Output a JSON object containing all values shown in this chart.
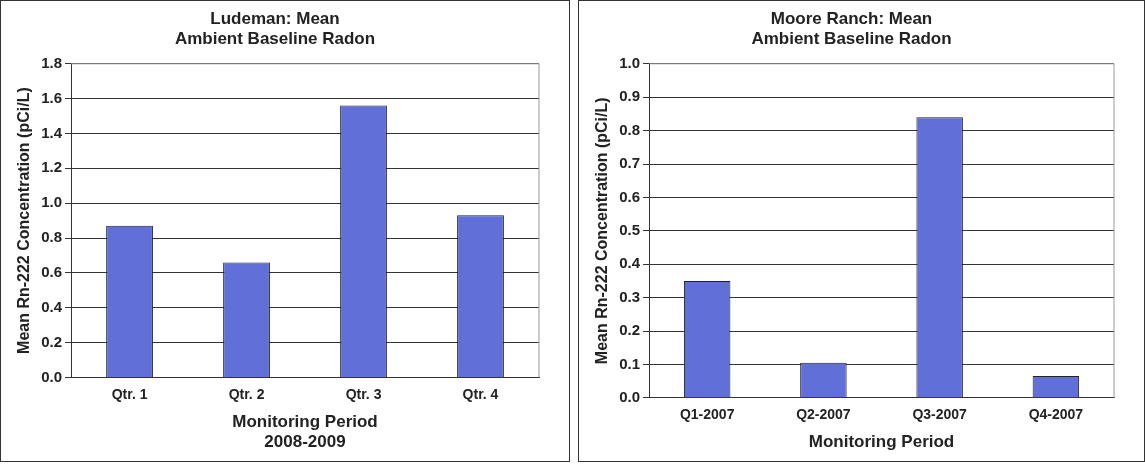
{
  "chart_data": [
    {
      "type": "bar",
      "title": "Ludeman: Mean\nAmbient Baseline Radon",
      "categories": [
        "Qtr. 1",
        "Qtr. 2",
        "Qtr. 3",
        "Qtr. 4"
      ],
      "values": [
        0.87,
        0.66,
        1.56,
        0.93
      ],
      "color": "#6170d8",
      "xlabel": "Monitoring Period\n2008-2009",
      "ylabel": "Mean Rn-222 Concentration (pCi/L)",
      "ylim": [
        0,
        1.8
      ],
      "yticks": [
        {
          "value": 0,
          "label": "0.0"
        },
        {
          "value": 0.2,
          "label": "0.2"
        },
        {
          "value": 0.4,
          "label": "0.4"
        },
        {
          "value": 0.6,
          "label": "0.6"
        },
        {
          "value": 0.8,
          "label": "0.8"
        },
        {
          "value": 1,
          "label": "1.0"
        },
        {
          "value": 1.2,
          "label": "1.2"
        },
        {
          "value": 1.4,
          "label": "1.4"
        },
        {
          "value": 1.6,
          "label": "1.6"
        },
        {
          "value": 1.8,
          "label": "1.8"
        }
      ],
      "grid": "y"
    },
    {
      "type": "bar",
      "title": "Moore Ranch: Mean\nAmbient Baseline Radon",
      "categories": [
        "Q1-2007",
        "Q2-2007",
        "Q3-2007",
        "Q4-2007"
      ],
      "values": [
        0.35,
        0.105,
        0.84,
        0.065
      ],
      "color": "#6170d8",
      "xlabel": "Monitoring Period",
      "ylabel": "Mean Rn-222 Concentration (pCi/L)",
      "ylim": [
        0,
        1
      ],
      "yticks": [
        {
          "value": 0,
          "label": "0.0"
        },
        {
          "value": 0.1,
          "label": "0.1"
        },
        {
          "value": 0.2,
          "label": "0.2"
        },
        {
          "value": 0.3,
          "label": "0.3"
        },
        {
          "value": 0.4,
          "label": "0.4"
        },
        {
          "value": 0.5,
          "label": "0.5"
        },
        {
          "value": 0.6,
          "label": "0.6"
        },
        {
          "value": 0.7,
          "label": "0.7"
        },
        {
          "value": 0.8,
          "label": "0.8"
        },
        {
          "value": 0.9,
          "label": "0.9"
        },
        {
          "value": 1,
          "label": "1.0"
        }
      ],
      "grid": "y"
    }
  ]
}
